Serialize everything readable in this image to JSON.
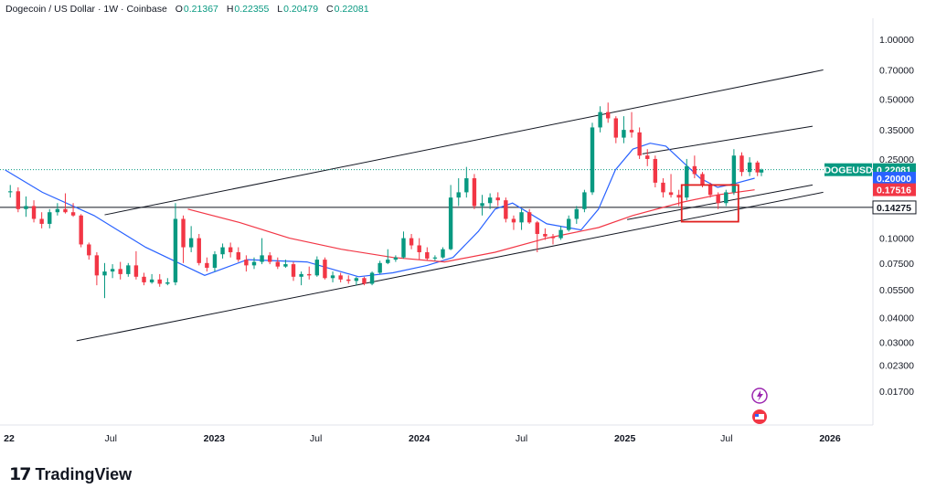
{
  "header": {
    "symbol_title": "Dogecoin / US Dollar · 1W · Coinbase",
    "open_label": "O",
    "open": "0.21367",
    "high_label": "H",
    "high": "0.22355",
    "low_label": "L",
    "low": "0.20479",
    "close_label": "C",
    "close": "0.22081"
  },
  "branding": {
    "name": "TradingView"
  },
  "colors": {
    "up": "#089981",
    "down": "#f23645",
    "ma_fast": "#2962ff",
    "ma_slow": "#f23645",
    "line": "#131722"
  },
  "chart_data": {
    "type": "candlestick",
    "scale": "log",
    "ylim": [
      0.0135,
      1.3
    ],
    "y_ticks": [
      "1.00000",
      "0.70000",
      "0.50000",
      "0.35000",
      "0.25000",
      "0.10000",
      "0.07500",
      "0.05500",
      "0.04000",
      "0.03000",
      "0.02300",
      "0.01700"
    ],
    "x_ticks": [
      {
        "label": "22",
        "date": "2022-01-01"
      },
      {
        "label": "Jul",
        "date": "2022-07-01"
      },
      {
        "label": "2023",
        "date": "2023-01-01"
      },
      {
        "label": "Jul",
        "date": "2023-07-01"
      },
      {
        "label": "2024",
        "date": "2024-01-01"
      },
      {
        "label": "Jul",
        "date": "2024-07-01"
      },
      {
        "label": "2025",
        "date": "2025-01-01"
      },
      {
        "label": "Jul",
        "date": "2025-07-01"
      },
      {
        "label": "2026",
        "date": "2026-01-01"
      }
    ],
    "price_tags": [
      {
        "label": "DOGEUSD",
        "value": "0.22081",
        "color": "#089981"
      },
      {
        "label": "",
        "value": "0.20000",
        "color": "#2962ff"
      },
      {
        "label": "",
        "value": "0.17516",
        "color": "#f23645"
      },
      {
        "label": "",
        "value": "0.14275",
        "color": "#131722"
      }
    ],
    "horizontal_level": 0.14275,
    "series": [
      {
        "name": "",
        "color": "#2962ff",
        "points": [
          [
            "2021-12-25",
            0.22
          ],
          [
            "2022-03-01",
            0.17
          ],
          [
            "2022-06-01",
            0.13
          ],
          [
            "2022-09-01",
            0.09
          ],
          [
            "2022-12-15",
            0.065
          ],
          [
            "2023-03-01",
            0.078
          ],
          [
            "2023-06-15",
            0.076
          ],
          [
            "2023-09-15",
            0.064
          ],
          [
            "2023-11-15",
            0.067
          ],
          [
            "2024-01-15",
            0.073
          ],
          [
            "2024-03-01",
            0.08
          ],
          [
            "2024-04-15",
            0.108
          ],
          [
            "2024-05-15",
            0.14
          ],
          [
            "2024-06-15",
            0.15
          ],
          [
            "2024-08-15",
            0.118
          ],
          [
            "2024-10-15",
            0.11
          ],
          [
            "2024-11-15",
            0.14
          ],
          [
            "2024-12-15",
            0.22
          ],
          [
            "2025-01-15",
            0.28
          ],
          [
            "2025-02-15",
            0.3
          ],
          [
            "2025-03-15",
            0.29
          ],
          [
            "2025-04-15",
            0.24
          ],
          [
            "2025-05-15",
            0.2
          ],
          [
            "2025-06-15",
            0.18
          ],
          [
            "2025-07-15",
            0.188
          ],
          [
            "2025-08-20",
            0.2
          ]
        ]
      },
      {
        "name": "",
        "color": "#f23645",
        "points": [
          [
            "2022-11-15",
            0.14
          ],
          [
            "2023-02-15",
            0.12
          ],
          [
            "2023-05-15",
            0.1
          ],
          [
            "2023-08-15",
            0.088
          ],
          [
            "2023-11-15",
            0.08
          ],
          [
            "2024-02-15",
            0.076
          ],
          [
            "2024-05-15",
            0.085
          ],
          [
            "2024-08-15",
            0.1
          ],
          [
            "2024-11-15",
            0.113
          ],
          [
            "2025-01-15",
            0.13
          ],
          [
            "2025-04-15",
            0.152
          ],
          [
            "2025-06-15",
            0.165
          ],
          [
            "2025-08-20",
            0.175
          ]
        ]
      }
    ],
    "candles": [
      [
        "2022-01-03",
        0.17,
        0.185,
        0.16,
        0.172
      ],
      [
        "2022-01-17",
        0.172,
        0.18,
        0.135,
        0.14
      ],
      [
        "2022-01-31",
        0.14,
        0.162,
        0.128,
        0.145
      ],
      [
        "2022-02-14",
        0.145,
        0.155,
        0.12,
        0.125
      ],
      [
        "2022-02-28",
        0.125,
        0.135,
        0.112,
        0.118
      ],
      [
        "2022-03-14",
        0.118,
        0.14,
        0.112,
        0.135
      ],
      [
        "2022-03-28",
        0.135,
        0.15,
        0.13,
        0.14
      ],
      [
        "2022-04-11",
        0.14,
        0.168,
        0.133,
        0.135
      ],
      [
        "2022-04-25",
        0.135,
        0.15,
        0.128,
        0.13
      ],
      [
        "2022-05-09",
        0.13,
        0.132,
        0.09,
        0.093
      ],
      [
        "2022-05-23",
        0.093,
        0.095,
        0.078,
        0.082
      ],
      [
        "2022-06-06",
        0.082,
        0.085,
        0.058,
        0.065
      ],
      [
        "2022-06-20",
        0.065,
        0.075,
        0.05,
        0.068
      ],
      [
        "2022-07-04",
        0.068,
        0.074,
        0.063,
        0.07
      ],
      [
        "2022-07-18",
        0.07,
        0.076,
        0.062,
        0.066
      ],
      [
        "2022-08-01",
        0.066,
        0.075,
        0.064,
        0.073
      ],
      [
        "2022-08-15",
        0.073,
        0.086,
        0.062,
        0.064
      ],
      [
        "2022-08-29",
        0.064,
        0.067,
        0.058,
        0.06
      ],
      [
        "2022-09-12",
        0.06,
        0.066,
        0.059,
        0.062
      ],
      [
        "2022-09-26",
        0.062,
        0.066,
        0.057,
        0.059
      ],
      [
        "2022-10-10",
        0.059,
        0.063,
        0.058,
        0.06
      ],
      [
        "2022-10-24",
        0.06,
        0.15,
        0.058,
        0.125
      ],
      [
        "2022-11-07",
        0.125,
        0.13,
        0.075,
        0.09
      ],
      [
        "2022-11-21",
        0.09,
        0.115,
        0.085,
        0.1
      ],
      [
        "2022-12-05",
        0.1,
        0.105,
        0.073,
        0.075
      ],
      [
        "2022-12-19",
        0.075,
        0.08,
        0.068,
        0.071
      ],
      [
        "2023-01-02",
        0.071,
        0.086,
        0.068,
        0.083
      ],
      [
        "2023-01-16",
        0.083,
        0.094,
        0.079,
        0.09
      ],
      [
        "2023-01-30",
        0.09,
        0.095,
        0.08,
        0.085
      ],
      [
        "2023-02-13",
        0.085,
        0.09,
        0.076,
        0.078
      ],
      [
        "2023-02-27",
        0.078,
        0.082,
        0.068,
        0.073
      ],
      [
        "2023-03-13",
        0.073,
        0.08,
        0.07,
        0.076
      ],
      [
        "2023-03-27",
        0.076,
        0.1,
        0.074,
        0.082
      ],
      [
        "2023-04-10",
        0.082,
        0.085,
        0.074,
        0.076
      ],
      [
        "2023-04-24",
        0.076,
        0.08,
        0.07,
        0.072
      ],
      [
        "2023-05-08",
        0.072,
        0.078,
        0.071,
        0.074
      ],
      [
        "2023-05-22",
        0.074,
        0.076,
        0.061,
        0.064
      ],
      [
        "2023-06-05",
        0.064,
        0.068,
        0.058,
        0.066
      ],
      [
        "2023-06-19",
        0.066,
        0.072,
        0.062,
        0.065
      ],
      [
        "2023-07-03",
        0.065,
        0.081,
        0.064,
        0.078
      ],
      [
        "2023-07-17",
        0.078,
        0.08,
        0.062,
        0.063
      ],
      [
        "2023-07-31",
        0.063,
        0.068,
        0.06,
        0.065
      ],
      [
        "2023-08-14",
        0.065,
        0.067,
        0.06,
        0.062
      ],
      [
        "2023-08-28",
        0.062,
        0.065,
        0.059,
        0.061
      ],
      [
        "2023-09-11",
        0.061,
        0.064,
        0.058,
        0.063
      ],
      [
        "2023-09-25",
        0.063,
        0.064,
        0.058,
        0.059
      ],
      [
        "2023-10-09",
        0.059,
        0.068,
        0.058,
        0.067
      ],
      [
        "2023-10-23",
        0.067,
        0.077,
        0.066,
        0.075
      ],
      [
        "2023-11-06",
        0.075,
        0.088,
        0.074,
        0.078
      ],
      [
        "2023-11-20",
        0.078,
        0.082,
        0.076,
        0.08
      ],
      [
        "2023-12-04",
        0.08,
        0.108,
        0.079,
        0.1
      ],
      [
        "2023-12-18",
        0.1,
        0.105,
        0.088,
        0.092
      ],
      [
        "2024-01-01",
        0.092,
        0.1,
        0.078,
        0.085
      ],
      [
        "2024-01-15",
        0.085,
        0.09,
        0.077,
        0.079
      ],
      [
        "2024-01-29",
        0.079,
        0.082,
        0.077,
        0.08
      ],
      [
        "2024-02-12",
        0.08,
        0.09,
        0.079,
        0.088
      ],
      [
        "2024-02-26",
        0.088,
        0.185,
        0.087,
        0.16
      ],
      [
        "2024-03-11",
        0.16,
        0.2,
        0.145,
        0.17
      ],
      [
        "2024-03-25",
        0.17,
        0.228,
        0.16,
        0.2
      ],
      [
        "2024-04-08",
        0.2,
        0.21,
        0.14,
        0.145
      ],
      [
        "2024-04-22",
        0.145,
        0.165,
        0.13,
        0.15
      ],
      [
        "2024-05-06",
        0.15,
        0.168,
        0.14,
        0.16
      ],
      [
        "2024-05-20",
        0.16,
        0.17,
        0.145,
        0.155
      ],
      [
        "2024-06-03",
        0.155,
        0.16,
        0.12,
        0.125
      ],
      [
        "2024-06-17",
        0.125,
        0.13,
        0.11,
        0.12
      ],
      [
        "2024-07-01",
        0.12,
        0.14,
        0.11,
        0.135
      ],
      [
        "2024-07-15",
        0.135,
        0.14,
        0.118,
        0.12
      ],
      [
        "2024-07-29",
        0.12,
        0.122,
        0.085,
        0.105
      ],
      [
        "2024-08-12",
        0.105,
        0.112,
        0.098,
        0.102
      ],
      [
        "2024-08-26",
        0.102,
        0.105,
        0.093,
        0.1
      ],
      [
        "2024-09-09",
        0.1,
        0.115,
        0.098,
        0.11
      ],
      [
        "2024-09-23",
        0.11,
        0.13,
        0.108,
        0.125
      ],
      [
        "2024-10-07",
        0.125,
        0.145,
        0.118,
        0.14
      ],
      [
        "2024-10-21",
        0.14,
        0.175,
        0.135,
        0.17
      ],
      [
        "2024-11-04",
        0.17,
        0.38,
        0.165,
        0.36
      ],
      [
        "2024-11-18",
        0.36,
        0.46,
        0.34,
        0.43
      ],
      [
        "2024-12-02",
        0.43,
        0.48,
        0.38,
        0.4
      ],
      [
        "2024-12-16",
        0.4,
        0.41,
        0.3,
        0.32
      ],
      [
        "2024-12-30",
        0.32,
        0.41,
        0.3,
        0.35
      ],
      [
        "2025-01-13",
        0.35,
        0.43,
        0.32,
        0.34
      ],
      [
        "2025-01-27",
        0.34,
        0.36,
        0.25,
        0.26
      ],
      [
        "2025-02-10",
        0.26,
        0.28,
        0.23,
        0.25
      ],
      [
        "2025-02-24",
        0.25,
        0.26,
        0.18,
        0.19
      ],
      [
        "2025-03-10",
        0.19,
        0.2,
        0.16,
        0.17
      ],
      [
        "2025-03-24",
        0.17,
        0.21,
        0.16,
        0.165
      ],
      [
        "2025-04-07",
        0.165,
        0.175,
        0.145,
        0.16
      ],
      [
        "2025-04-21",
        0.16,
        0.25,
        0.155,
        0.23
      ],
      [
        "2025-05-05",
        0.23,
        0.26,
        0.2,
        0.21
      ],
      [
        "2025-05-19",
        0.21,
        0.215,
        0.18,
        0.185
      ],
      [
        "2025-06-02",
        0.185,
        0.19,
        0.16,
        0.165
      ],
      [
        "2025-06-16",
        0.165,
        0.17,
        0.14,
        0.15
      ],
      [
        "2025-06-30",
        0.15,
        0.175,
        0.145,
        0.17
      ],
      [
        "2025-07-14",
        0.17,
        0.28,
        0.165,
        0.26
      ],
      [
        "2025-07-28",
        0.26,
        0.27,
        0.205,
        0.215
      ],
      [
        "2025-08-11",
        0.215,
        0.255,
        0.205,
        0.24
      ],
      [
        "2025-08-25",
        0.24,
        0.245,
        0.205,
        0.214
      ],
      [
        "2025-09-01",
        0.21367,
        0.22355,
        0.20479,
        0.22081
      ]
    ]
  }
}
